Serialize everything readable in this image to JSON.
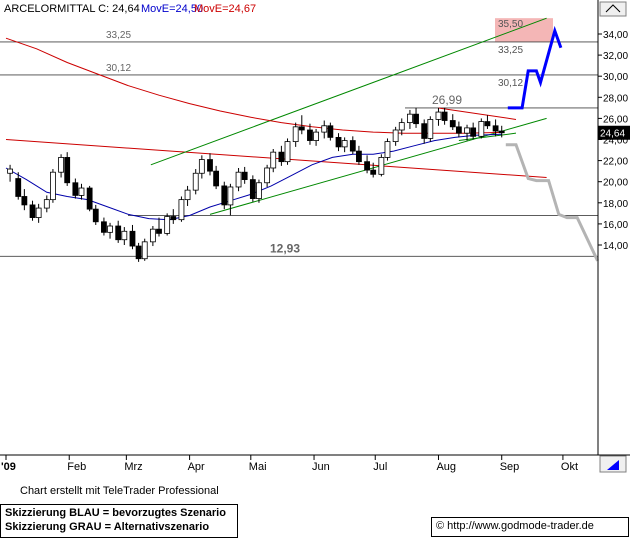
{
  "header": {
    "symbol": "ARCELORMITTAL C: 24,64",
    "ma_short": "MovE=24,50",
    "ma_long": "MovE=24,67"
  },
  "colors": {
    "up_color": "#0000cc",
    "down_color": "#cc0000",
    "blue_scenario": "#0000ff",
    "grey_scenario": "#b4b4b4",
    "ma_short_color": "#0000aa",
    "ma_long_color": "#cc0000",
    "channel_color": "#008800",
    "target_zone": "#f4b6b6",
    "price_badge": "#000000"
  },
  "chart_data": {
    "type": "candlestick",
    "title": "ARCELORMITTAL C: 24,64",
    "ylim": [
      12.0,
      35.8
    ],
    "price_axis_ticks": [
      "34,00",
      "32,00",
      "30,00",
      "28,00",
      "26,00",
      "24,00",
      "22,00",
      "20,00",
      "18,00",
      "16,00",
      "14,00"
    ],
    "price_axis_values": [
      34,
      32,
      30,
      28,
      26,
      24,
      22,
      20,
      18,
      16,
      14
    ],
    "time_axis_labels": [
      "'09",
      "Feb",
      "Mrz",
      "Apr",
      "Mai",
      "Jun",
      "Jul",
      "Aug",
      "Sep",
      "Okt"
    ],
    "time_axis_days": [
      0,
      31,
      59,
      90,
      120,
      151,
      181,
      212,
      243,
      273
    ],
    "last_price_badge": "24,64",
    "horizontal_levels": [
      {
        "value": 33.25,
        "label": "33,25"
      },
      {
        "value": 30.12,
        "label": "30,12"
      },
      {
        "value": 26.99,
        "label": "26,99"
      },
      {
        "value": 16.8,
        "label": ""
      },
      {
        "value": 12.93,
        "label": "12,93"
      }
    ],
    "target_zone": {
      "from": 33.25,
      "to": 35.5,
      "label_top": "35,50",
      "label_bottom": "33,25"
    },
    "right_labels": [
      {
        "value": 33.25,
        "label": "33,25"
      },
      {
        "value": 30.12,
        "label": "30,12"
      }
    ],
    "ohlc": [
      {
        "day": 2,
        "o": 20.8,
        "h": 21.6,
        "l": 20.0,
        "c": 21.2
      },
      {
        "day": 6,
        "o": 20.3,
        "h": 20.9,
        "l": 18.3,
        "c": 18.6
      },
      {
        "day": 9,
        "o": 18.6,
        "h": 19.3,
        "l": 17.3,
        "c": 17.8
      },
      {
        "day": 13,
        "o": 17.8,
        "h": 18.2,
        "l": 16.3,
        "c": 16.6
      },
      {
        "day": 16,
        "o": 16.6,
        "h": 17.9,
        "l": 16.1,
        "c": 17.5
      },
      {
        "day": 20,
        "o": 17.5,
        "h": 18.7,
        "l": 17.1,
        "c": 18.3
      },
      {
        "day": 23,
        "o": 18.3,
        "h": 21.2,
        "l": 18.0,
        "c": 20.9
      },
      {
        "day": 27,
        "o": 20.9,
        "h": 22.6,
        "l": 20.4,
        "c": 22.3
      },
      {
        "day": 30,
        "o": 22.3,
        "h": 22.8,
        "l": 19.6,
        "c": 19.9
      },
      {
        "day": 34,
        "o": 19.9,
        "h": 20.3,
        "l": 18.4,
        "c": 18.7
      },
      {
        "day": 37,
        "o": 18.7,
        "h": 19.8,
        "l": 18.3,
        "c": 19.4
      },
      {
        "day": 41,
        "o": 19.4,
        "h": 19.6,
        "l": 17.2,
        "c": 17.4
      },
      {
        "day": 44,
        "o": 17.4,
        "h": 17.8,
        "l": 15.9,
        "c": 16.2
      },
      {
        "day": 48,
        "o": 16.2,
        "h": 16.6,
        "l": 14.9,
        "c": 15.2
      },
      {
        "day": 51,
        "o": 15.2,
        "h": 16.1,
        "l": 14.6,
        "c": 15.8
      },
      {
        "day": 55,
        "o": 15.8,
        "h": 16.3,
        "l": 14.2,
        "c": 14.5
      },
      {
        "day": 58,
        "o": 14.5,
        "h": 15.7,
        "l": 14.0,
        "c": 15.3
      },
      {
        "day": 62,
        "o": 15.3,
        "h": 15.9,
        "l": 13.6,
        "c": 13.9
      },
      {
        "day": 65,
        "o": 13.9,
        "h": 14.2,
        "l": 12.4,
        "c": 12.7
      },
      {
        "day": 68,
        "o": 12.7,
        "h": 14.6,
        "l": 12.5,
        "c": 14.3
      },
      {
        "day": 72,
        "o": 14.3,
        "h": 15.8,
        "l": 13.9,
        "c": 15.5
      },
      {
        "day": 75,
        "o": 15.5,
        "h": 16.6,
        "l": 14.8,
        "c": 15.1
      },
      {
        "day": 79,
        "o": 15.1,
        "h": 17.0,
        "l": 14.9,
        "c": 16.7
      },
      {
        "day": 82,
        "o": 16.7,
        "h": 17.4,
        "l": 16.0,
        "c": 16.4
      },
      {
        "day": 86,
        "o": 16.4,
        "h": 18.6,
        "l": 16.2,
        "c": 18.3
      },
      {
        "day": 89,
        "o": 18.3,
        "h": 19.6,
        "l": 17.7,
        "c": 19.2
      },
      {
        "day": 93,
        "o": 19.2,
        "h": 21.2,
        "l": 18.8,
        "c": 20.8
      },
      {
        "day": 96,
        "o": 20.8,
        "h": 22.5,
        "l": 20.3,
        "c": 22.1
      },
      {
        "day": 100,
        "o": 22.1,
        "h": 22.7,
        "l": 20.6,
        "c": 21.0
      },
      {
        "day": 103,
        "o": 21.0,
        "h": 21.5,
        "l": 19.3,
        "c": 19.6
      },
      {
        "day": 107,
        "o": 19.6,
        "h": 20.0,
        "l": 17.4,
        "c": 17.8
      },
      {
        "day": 110,
        "o": 17.8,
        "h": 19.8,
        "l": 16.8,
        "c": 19.5
      },
      {
        "day": 114,
        "o": 19.5,
        "h": 21.3,
        "l": 19.1,
        "c": 20.9
      },
      {
        "day": 117,
        "o": 20.9,
        "h": 21.4,
        "l": 19.8,
        "c": 20.2
      },
      {
        "day": 121,
        "o": 20.2,
        "h": 20.6,
        "l": 18.1,
        "c": 18.4
      },
      {
        "day": 124,
        "o": 18.4,
        "h": 20.2,
        "l": 18.0,
        "c": 19.9
      },
      {
        "day": 128,
        "o": 19.9,
        "h": 21.6,
        "l": 19.5,
        "c": 21.3
      },
      {
        "day": 131,
        "o": 21.3,
        "h": 23.1,
        "l": 20.9,
        "c": 22.8
      },
      {
        "day": 135,
        "o": 22.8,
        "h": 23.4,
        "l": 21.5,
        "c": 21.9
      },
      {
        "day": 138,
        "o": 21.9,
        "h": 24.1,
        "l": 21.6,
        "c": 23.8
      },
      {
        "day": 142,
        "o": 23.8,
        "h": 25.6,
        "l": 23.3,
        "c": 25.2
      },
      {
        "day": 145,
        "o": 25.2,
        "h": 26.3,
        "l": 24.5,
        "c": 24.9
      },
      {
        "day": 149,
        "o": 24.9,
        "h": 25.5,
        "l": 23.5,
        "c": 23.9
      },
      {
        "day": 152,
        "o": 23.9,
        "h": 25.0,
        "l": 23.4,
        "c": 24.7
      },
      {
        "day": 156,
        "o": 24.7,
        "h": 25.8,
        "l": 24.1,
        "c": 25.3
      },
      {
        "day": 159,
        "o": 25.3,
        "h": 25.6,
        "l": 23.9,
        "c": 24.2
      },
      {
        "day": 163,
        "o": 24.2,
        "h": 24.6,
        "l": 22.9,
        "c": 23.3
      },
      {
        "day": 166,
        "o": 23.3,
        "h": 24.2,
        "l": 22.8,
        "c": 23.9
      },
      {
        "day": 170,
        "o": 23.9,
        "h": 24.3,
        "l": 22.6,
        "c": 22.9
      },
      {
        "day": 173,
        "o": 22.9,
        "h": 23.4,
        "l": 21.6,
        "c": 21.9
      },
      {
        "day": 177,
        "o": 21.9,
        "h": 22.5,
        "l": 20.8,
        "c": 21.1
      },
      {
        "day": 180,
        "o": 21.1,
        "h": 21.8,
        "l": 20.4,
        "c": 20.7
      },
      {
        "day": 184,
        "o": 20.7,
        "h": 22.6,
        "l": 20.5,
        "c": 22.3
      },
      {
        "day": 187,
        "o": 22.3,
        "h": 24.1,
        "l": 22.0,
        "c": 23.8
      },
      {
        "day": 191,
        "o": 23.8,
        "h": 25.2,
        "l": 23.4,
        "c": 24.9
      },
      {
        "day": 194,
        "o": 24.9,
        "h": 26.0,
        "l": 24.4,
        "c": 25.6
      },
      {
        "day": 198,
        "o": 25.6,
        "h": 26.8,
        "l": 25.0,
        "c": 26.4
      },
      {
        "day": 201,
        "o": 26.4,
        "h": 27.0,
        "l": 25.1,
        "c": 25.5
      },
      {
        "day": 205,
        "o": 25.5,
        "h": 25.9,
        "l": 23.6,
        "c": 24.1
      },
      {
        "day": 208,
        "o": 24.1,
        "h": 26.2,
        "l": 23.8,
        "c": 25.9
      },
      {
        "day": 212,
        "o": 25.9,
        "h": 27.0,
        "l": 25.3,
        "c": 26.6
      },
      {
        "day": 215,
        "o": 26.6,
        "h": 27.0,
        "l": 25.4,
        "c": 25.8
      },
      {
        "day": 219,
        "o": 25.8,
        "h": 26.4,
        "l": 24.9,
        "c": 25.2
      },
      {
        "day": 222,
        "o": 25.2,
        "h": 25.7,
        "l": 24.2,
        "c": 24.6
      },
      {
        "day": 226,
        "o": 24.6,
        "h": 25.4,
        "l": 23.9,
        "c": 25.1
      },
      {
        "day": 229,
        "o": 25.1,
        "h": 25.6,
        "l": 24.0,
        "c": 24.3
      },
      {
        "day": 233,
        "o": 24.3,
        "h": 26.0,
        "l": 24.1,
        "c": 25.7
      },
      {
        "day": 236,
        "o": 25.7,
        "h": 26.3,
        "l": 25.0,
        "c": 25.3
      },
      {
        "day": 240,
        "o": 25.3,
        "h": 25.9,
        "l": 24.3,
        "c": 24.8
      },
      {
        "day": 243,
        "o": 24.8,
        "h": 25.3,
        "l": 24.2,
        "c": 24.64
      }
    ],
    "moving_averages": [
      {
        "name": "MovE=24,50",
        "color": "#0000aa",
        "points": [
          [
            0,
            21.3
          ],
          [
            10,
            20.2
          ],
          [
            20,
            19.0
          ],
          [
            30,
            18.6
          ],
          [
            40,
            18.3
          ],
          [
            50,
            17.6
          ],
          [
            60,
            16.9
          ],
          [
            70,
            16.5
          ],
          [
            80,
            16.4
          ],
          [
            90,
            16.8
          ],
          [
            100,
            17.6
          ],
          [
            110,
            18.2
          ],
          [
            120,
            18.8
          ],
          [
            130,
            19.6
          ],
          [
            140,
            20.6
          ],
          [
            150,
            21.6
          ],
          [
            160,
            22.3
          ],
          [
            170,
            22.6
          ],
          [
            180,
            22.6
          ],
          [
            190,
            22.9
          ],
          [
            200,
            23.4
          ],
          [
            210,
            23.9
          ],
          [
            220,
            24.2
          ],
          [
            230,
            24.4
          ],
          [
            243,
            24.5
          ]
        ]
      },
      {
        "name": "MovE=24,67",
        "color": "#cc0000",
        "points": [
          [
            0,
            33.6
          ],
          [
            15,
            32.6
          ],
          [
            30,
            31.3
          ],
          [
            45,
            30.2
          ],
          [
            60,
            29.1
          ],
          [
            75,
            28.2
          ],
          [
            90,
            27.4
          ],
          [
            105,
            26.7
          ],
          [
            120,
            26.1
          ],
          [
            135,
            25.6
          ],
          [
            150,
            25.2
          ],
          [
            165,
            24.9
          ],
          [
            180,
            24.7
          ],
          [
            195,
            24.6
          ],
          [
            210,
            24.6
          ],
          [
            225,
            24.6
          ],
          [
            243,
            24.67
          ]
        ]
      }
    ],
    "trend_lines": [
      {
        "kind": "resistance",
        "color": "#cc0000",
        "points": [
          [
            0,
            24.0
          ],
          [
            265,
            20.4
          ]
        ]
      },
      {
        "kind": "triangle-top",
        "color": "#cc0000",
        "points": [
          [
            212,
            26.99
          ],
          [
            250,
            25.9
          ]
        ]
      },
      {
        "kind": "triangle-bottom",
        "color": "#008800",
        "points": [
          [
            222,
            23.9
          ],
          [
            250,
            24.6
          ]
        ]
      },
      {
        "kind": "channel-top",
        "color": "#008800",
        "points": [
          [
            71,
            21.6
          ],
          [
            265,
            35.5
          ]
        ]
      },
      {
        "kind": "channel-bottom",
        "color": "#008800",
        "points": [
          [
            100,
            16.9
          ],
          [
            265,
            26.0
          ]
        ]
      }
    ],
    "scenarios": [
      {
        "name": "Skizzierung BLAU = bevorzugtes Szenario",
        "color": "#0000ff",
        "points": [
          [
            246,
            27.0
          ],
          [
            253,
            27.0
          ],
          [
            256,
            30.5
          ],
          [
            260,
            30.5
          ],
          [
            262,
            29.4
          ],
          [
            269,
            34.3
          ],
          [
            272,
            32.7
          ]
        ]
      },
      {
        "name": "Skizzierung GRAU = Alternativszenario",
        "color": "#b4b4b4",
        "points": [
          [
            245,
            23.5
          ],
          [
            250,
            23.5
          ],
          [
            256,
            20.3
          ],
          [
            260,
            20.1
          ],
          [
            266,
            20.1
          ],
          [
            271,
            16.9
          ],
          [
            275,
            16.6
          ],
          [
            280,
            16.6
          ],
          [
            290,
            12.5
          ]
        ]
      }
    ]
  },
  "footer": {
    "credit": "Chart erstellt mit TeleTrader Professional",
    "legend_blue": "Skizzierung BLAU = bevorzugtes Szenario",
    "legend_grey": "Skizzierung GRAU = Alternativszenario",
    "website": "© http://www.godmode-trader.de"
  }
}
